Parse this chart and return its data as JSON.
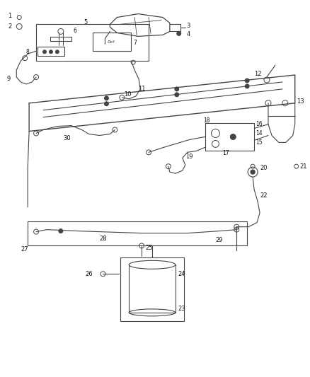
{
  "bg_color": "#ffffff",
  "line_color": "#444444",
  "label_color": "#111111",
  "fig_width": 4.38,
  "fig_height": 5.33,
  "dpi": 100
}
